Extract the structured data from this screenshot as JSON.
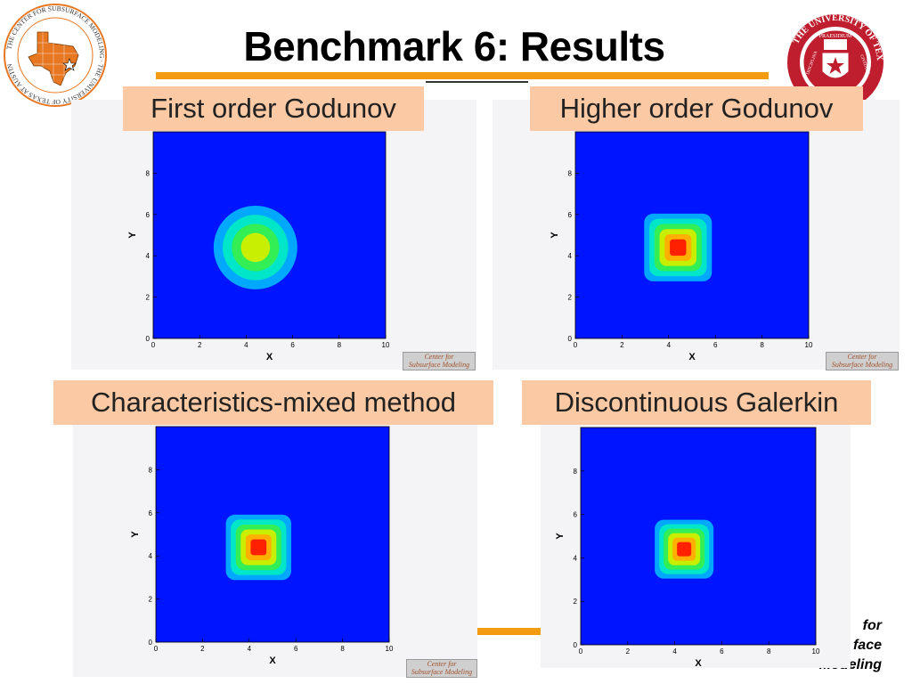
{
  "slide": {
    "title": "Benchmark 6: Results",
    "corner_text_lines": [
      "for",
      "face",
      "Modeling"
    ]
  },
  "logos": {
    "left": {
      "ring_text": "THE CENTER FOR SUBSURFACE MODELING · THE UNIVERSITY OF TEXAS AT AUSTIN",
      "color": "#e87722"
    },
    "right": {
      "ring_text": "THE UNIVERSITY OF TEXAS",
      "inner_text": "PRAESIDIUM",
      "left_word": "DISCIPLINA",
      "right_word": "CIVITATIS",
      "color": "#bf1e2e"
    }
  },
  "panels": [
    {
      "label": "First order Godunov",
      "watermark": [
        "Center for",
        "Subsurface Modeling"
      ]
    },
    {
      "label": "Higher order Godunov",
      "watermark": [
        "Center for",
        "Subsurface Modeling"
      ]
    },
    {
      "label": "Characteristics-mixed method",
      "watermark": [
        "Center for",
        "Subsurface Modeling"
      ]
    },
    {
      "label": "Discontinuous Galerkin",
      "watermark": []
    }
  ],
  "chart_data": [
    {
      "type": "heatmap",
      "title": "First order Godunov",
      "xlabel": "X",
      "ylabel": "Y",
      "xlim": [
        0,
        10
      ],
      "ylim": [
        0,
        10
      ],
      "xticks": [
        0,
        2,
        4,
        6,
        8,
        10
      ],
      "yticks": [
        0,
        2,
        4,
        6,
        8
      ],
      "blob": {
        "center": [
          4.4,
          4.4
        ],
        "half_width": 1.8,
        "shape": "round",
        "peak": 0.68
      }
    },
    {
      "type": "heatmap",
      "title": "Higher order Godunov",
      "xlabel": "X",
      "ylabel": "Y",
      "xlim": [
        0,
        10
      ],
      "ylim": [
        0,
        10
      ],
      "xticks": [
        0,
        2,
        4,
        6,
        8,
        10
      ],
      "yticks": [
        0,
        2,
        4,
        6,
        8
      ],
      "blob": {
        "center": [
          4.4,
          4.4
        ],
        "half_width": 1.45,
        "shape": "square",
        "peak": 1.0
      }
    },
    {
      "type": "heatmap",
      "title": "Characteristics-mixed method",
      "xlabel": "X",
      "ylabel": "Y",
      "xlim": [
        0,
        10
      ],
      "ylim": [
        0,
        10
      ],
      "xticks": [
        0,
        2,
        4,
        6,
        8,
        10
      ],
      "yticks": [
        0,
        2,
        4,
        6,
        8
      ],
      "blob": {
        "center": [
          4.4,
          4.4
        ],
        "half_width": 1.4,
        "shape": "square",
        "peak": 1.0
      }
    },
    {
      "type": "heatmap",
      "title": "Discontinuous Galerkin",
      "xlabel": "X",
      "ylabel": "Y",
      "xlim": [
        0,
        10
      ],
      "ylim": [
        0,
        10
      ],
      "xticks": [
        0,
        2,
        4,
        6,
        8,
        10
      ],
      "yticks": [
        0,
        2,
        4,
        6,
        8
      ],
      "blob": {
        "center": [
          4.4,
          4.4
        ],
        "half_width": 1.25,
        "shape": "square",
        "peak": 1.0
      }
    }
  ],
  "colors": {
    "field": "#0015ff",
    "accent": "#f39c12",
    "label_bg": "#fbc9a3",
    "scale": [
      "#0015ff",
      "#00a8ff",
      "#00e6c8",
      "#33ee55",
      "#c8ee00",
      "#ffb000",
      "#ff2000"
    ]
  }
}
